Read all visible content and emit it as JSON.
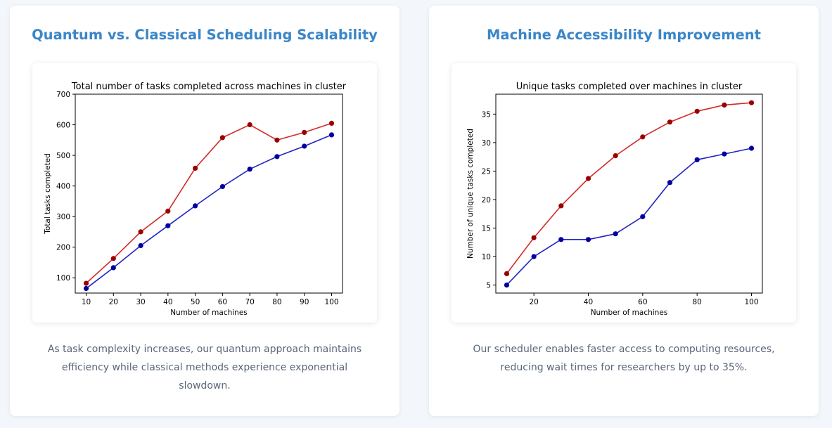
{
  "colors": {
    "quantum": "#d42a2a",
    "quantum_marker": "#9a0000",
    "classical": "#2222c4",
    "classical_marker": "#0000a0",
    "heading": "#3b86c8",
    "body_text": "#5a6678"
  },
  "panels": [
    {
      "heading": "Quantum vs. Classical Scheduling Scalability",
      "description": "As task complexity increases, our quantum approach maintains efficiency while classical methods experience exponential slowdown."
    },
    {
      "heading": "Machine Accessibility Improvement",
      "description": "Our scheduler enables faster access to computing resources, reducing wait times for researchers by up to 35%."
    }
  ],
  "chart_data": [
    {
      "type": "line",
      "title": "Total number of tasks completed across machines in cluster",
      "xlabel": "Number of machines",
      "ylabel": "Total tasks completed",
      "x": [
        10,
        20,
        30,
        40,
        50,
        60,
        70,
        80,
        90,
        100
      ],
      "xticks": [
        10,
        20,
        30,
        40,
        50,
        60,
        70,
        80,
        90,
        100
      ],
      "yticks": [
        100,
        200,
        300,
        400,
        500,
        600,
        700
      ],
      "xlim": [
        6,
        104
      ],
      "ylim": [
        50,
        700
      ],
      "grid": false,
      "series": [
        {
          "color": "#d42a2a",
          "marker_color": "#9a0000",
          "values": [
            82,
            163,
            250,
            318,
            458,
            558,
            600,
            550,
            575,
            605
          ]
        },
        {
          "color": "#2222c4",
          "marker_color": "#0000a0",
          "values": [
            65,
            133,
            205,
            270,
            335,
            398,
            455,
            496,
            530,
            567
          ]
        }
      ]
    },
    {
      "type": "line",
      "title": "Unique tasks completed over machines in cluster",
      "xlabel": "Number of machines",
      "ylabel": "Number of unique tasks completed",
      "x": [
        10,
        20,
        30,
        40,
        50,
        60,
        70,
        80,
        90,
        100
      ],
      "xticks": [
        20,
        40,
        60,
        80,
        100
      ],
      "yticks": [
        5,
        10,
        15,
        20,
        25,
        30,
        35
      ],
      "xlim": [
        6,
        104
      ],
      "ylim": [
        3.6,
        38.5
      ],
      "grid": false,
      "series": [
        {
          "color": "#d42a2a",
          "marker_color": "#9a0000",
          "values": [
            7,
            13.3,
            18.9,
            23.7,
            27.7,
            31.0,
            33.6,
            35.5,
            36.6,
            37.0
          ]
        },
        {
          "color": "#2222c4",
          "marker_color": "#0000a0",
          "values": [
            5,
            10,
            13,
            13,
            14,
            17,
            23,
            27,
            28,
            29
          ]
        }
      ]
    }
  ]
}
